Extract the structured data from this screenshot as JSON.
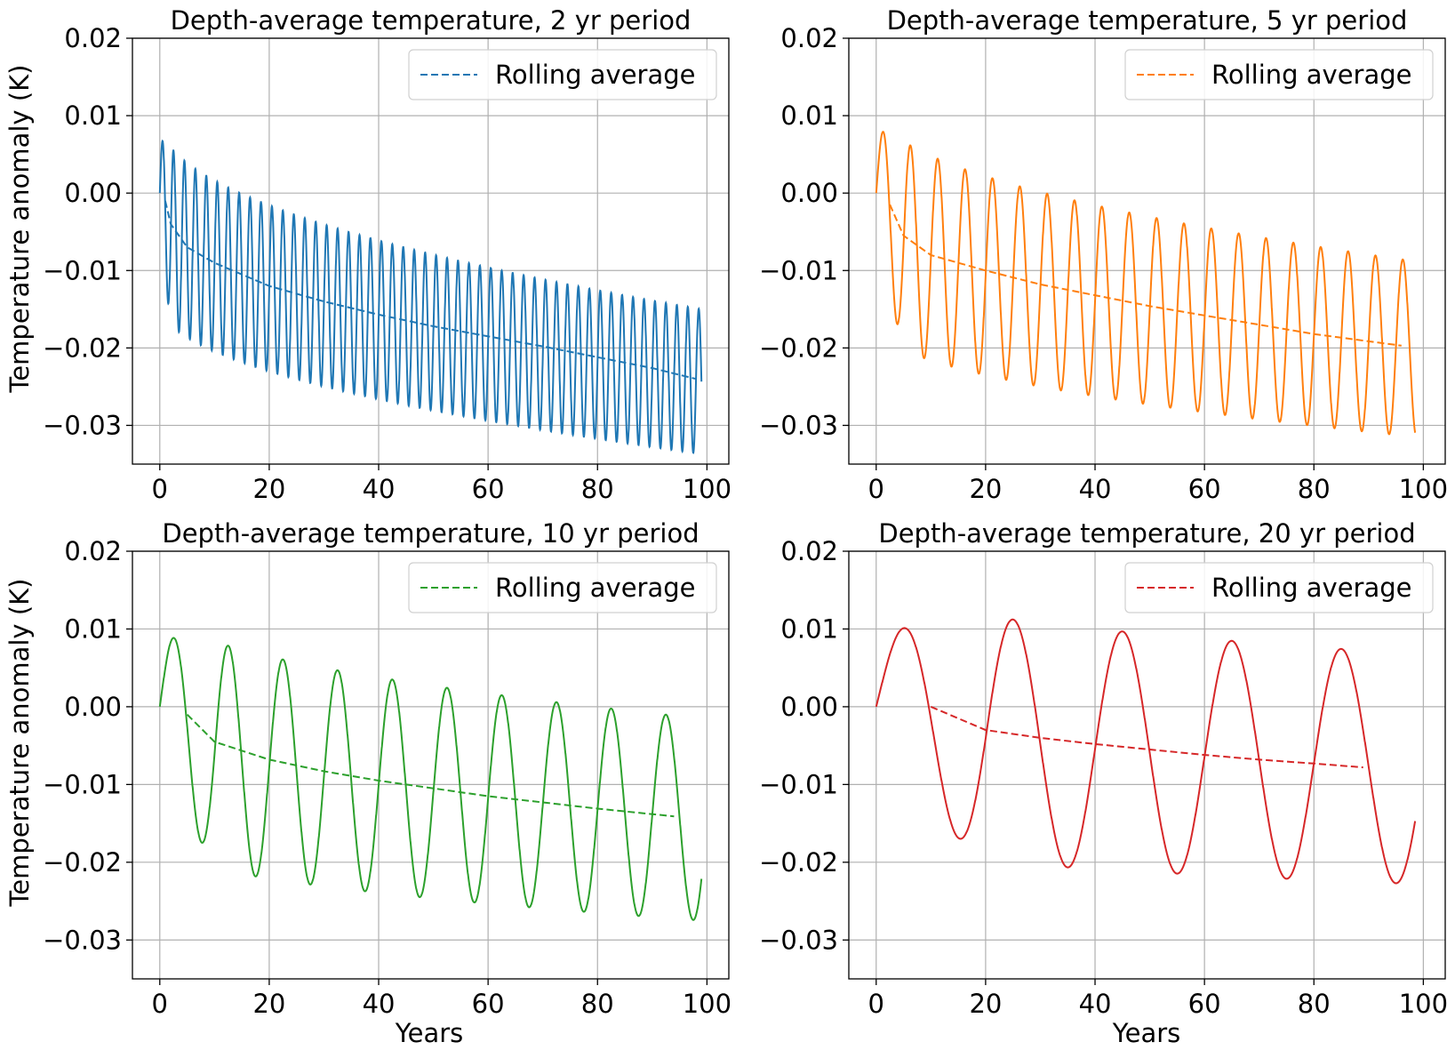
{
  "figure": {
    "ylabel": "Temperature anomaly (K)",
    "xlabel": "Years"
  },
  "chart_data": [
    {
      "type": "line",
      "title": "Depth-average temperature, 2 yr period",
      "period": 2,
      "xlabel": "",
      "ylabel": "Temperature anomaly (K)",
      "xlim": [
        -5,
        104
      ],
      "ylim": [
        -0.035,
        0.02
      ],
      "xticks": [
        0,
        20,
        40,
        60,
        80,
        100
      ],
      "yticks": [
        0.02,
        0.01,
        0.0,
        -0.01,
        -0.02,
        -0.03
      ],
      "xtick_labels": [
        "0",
        "20",
        "40",
        "60",
        "80",
        "100"
      ],
      "ytick_labels": [
        "0.02",
        "0.01",
        "0.00",
        "−0.01",
        "−0.02",
        "−0.03"
      ],
      "grid": true,
      "legend": {
        "placement": "upper right",
        "entries": [
          "Rolling average"
        ]
      },
      "color": "#1f77b4",
      "series": [
        {
          "name": "",
          "style": "solid",
          "x_range": [
            0,
            99
          ],
          "start_value": 0.0,
          "first_peak": 0.0094,
          "first_trough": -0.0143,
          "last_peak": -0.015,
          "last_trough": -0.0337
        },
        {
          "name": "Rolling average",
          "style": "dashed",
          "x": [
            1,
            2,
            5,
            10,
            20,
            30,
            40,
            50,
            60,
            70,
            80,
            90,
            98
          ],
          "values": [
            -0.001,
            -0.004,
            -0.007,
            -0.009,
            -0.012,
            -0.014,
            -0.0157,
            -0.0172,
            -0.0185,
            -0.0198,
            -0.0212,
            -0.0226,
            -0.024
          ]
        }
      ]
    },
    {
      "type": "line",
      "title": "Depth-average temperature, 5 yr period",
      "period": 5,
      "xlabel": "",
      "ylabel": "",
      "xlim": [
        -5,
        104
      ],
      "ylim": [
        -0.035,
        0.02
      ],
      "xticks": [
        0,
        20,
        40,
        60,
        80,
        100
      ],
      "yticks": [
        0.02,
        0.01,
        0.0,
        -0.01,
        -0.02,
        -0.03
      ],
      "xtick_labels": [
        "0",
        "20",
        "40",
        "60",
        "80",
        "100"
      ],
      "ytick_labels": [
        "0.02",
        "0.01",
        "0.00",
        "−0.01",
        "−0.02",
        "−0.03"
      ],
      "grid": true,
      "legend": {
        "placement": "upper right",
        "entries": [
          "Rolling average"
        ]
      },
      "color": "#ff7f0e",
      "series": [
        {
          "name": "",
          "style": "solid",
          "x_range": [
            0,
            98.5
          ],
          "start_value": 0.0,
          "first_peak": 0.0112,
          "first_trough": -0.017,
          "last_peak": -0.0088,
          "last_trough": -0.0315
        },
        {
          "name": "Rolling average",
          "style": "dashed",
          "x": [
            2.5,
            5,
            10,
            20,
            30,
            40,
            50,
            60,
            70,
            80,
            96
          ],
          "values": [
            -0.0015,
            -0.0055,
            -0.008,
            -0.01,
            -0.0118,
            -0.0132,
            -0.0146,
            -0.0158,
            -0.017,
            -0.0182,
            -0.0197
          ]
        }
      ]
    },
    {
      "type": "line",
      "title": "Depth-average temperature, 10 yr period",
      "period": 10,
      "xlabel": "Years",
      "ylabel": "Temperature anomaly (K)",
      "xlim": [
        -5,
        104
      ],
      "ylim": [
        -0.035,
        0.02
      ],
      "xticks": [
        0,
        20,
        40,
        60,
        80,
        100
      ],
      "yticks": [
        0.02,
        0.01,
        0.0,
        -0.01,
        -0.02,
        -0.03
      ],
      "xtick_labels": [
        "0",
        "20",
        "40",
        "60",
        "80",
        "100"
      ],
      "ytick_labels": [
        "0.02",
        "0.01",
        "0.00",
        "−0.01",
        "−0.02",
        "−0.03"
      ],
      "grid": true,
      "legend": {
        "placement": "upper right",
        "entries": [
          "Rolling average"
        ]
      },
      "color": "#2ca02c",
      "series": [
        {
          "name": "",
          "style": "solid",
          "x_range": [
            0,
            99
          ],
          "start_value": 0.0,
          "first_peak": 0.013,
          "first_trough": -0.0177,
          "last_peak": -0.0015,
          "last_trough": -0.0275
        },
        {
          "name": "Rolling average",
          "style": "dashed",
          "x": [
            5,
            10,
            20,
            30,
            40,
            50,
            60,
            70,
            80,
            94
          ],
          "values": [
            -0.001,
            -0.0045,
            -0.0068,
            -0.0083,
            -0.0095,
            -0.0105,
            -0.0115,
            -0.0123,
            -0.0131,
            -0.0141
          ]
        }
      ]
    },
    {
      "type": "line",
      "title": "Depth-average temperature, 20 yr period",
      "period": 20,
      "xlabel": "Years",
      "ylabel": "",
      "xlim": [
        -5,
        104
      ],
      "ylim": [
        -0.035,
        0.02
      ],
      "xticks": [
        0,
        20,
        40,
        60,
        80,
        100
      ],
      "yticks": [
        0.02,
        0.01,
        0.0,
        -0.01,
        -0.02,
        -0.03
      ],
      "xtick_labels": [
        "0",
        "20",
        "40",
        "60",
        "80",
        "100"
      ],
      "ytick_labels": [
        "0.02",
        "0.01",
        "0.00",
        "−0.01",
        "−0.02",
        "−0.03"
      ],
      "grid": true,
      "legend": {
        "placement": "upper right",
        "entries": [
          "Rolling average"
        ]
      },
      "color": "#d62728",
      "series": [
        {
          "name": "",
          "style": "solid",
          "x_range": [
            0,
            98.5
          ],
          "start_value": 0.0,
          "first_peak": 0.0157,
          "first_trough": -0.0175,
          "last_peak": 0.0068,
          "last_trough": -0.0228
        },
        {
          "name": "Rolling average",
          "style": "dashed",
          "x": [
            10,
            20,
            30,
            40,
            50,
            60,
            70,
            80,
            89
          ],
          "values": [
            0.0,
            -0.003,
            -0.004,
            -0.0048,
            -0.0055,
            -0.0062,
            -0.0068,
            -0.0073,
            -0.0078
          ]
        }
      ]
    }
  ]
}
